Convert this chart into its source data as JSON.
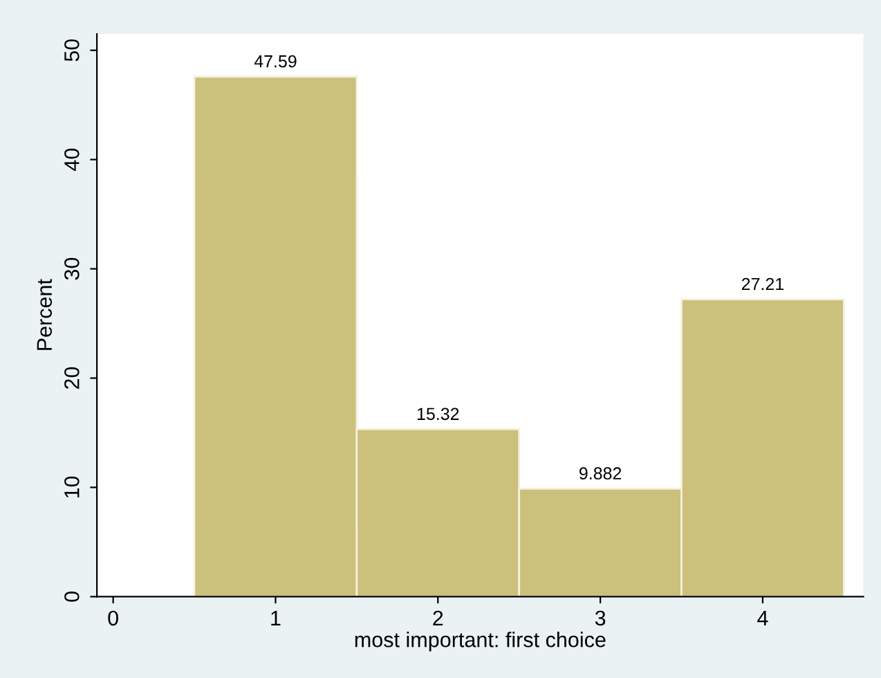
{
  "chart_data": {
    "type": "histogram",
    "xlabel": "most important: first choice",
    "ylabel": "Percent",
    "bins": [
      0.5,
      1.5,
      2.5,
      3.5,
      4.5
    ],
    "values": [
      47.59,
      15.32,
      9.882,
      27.21
    ],
    "color": "#cbc07c",
    "data_labels": true,
    "xlim": [
      -0.1,
      4.62
    ],
    "xticks": [
      0,
      1,
      2,
      3,
      4
    ],
    "ylim": [
      0,
      51.5
    ],
    "yticks": [
      0,
      10,
      20,
      30,
      40,
      50
    ],
    "grid": false,
    "legend": false
  }
}
